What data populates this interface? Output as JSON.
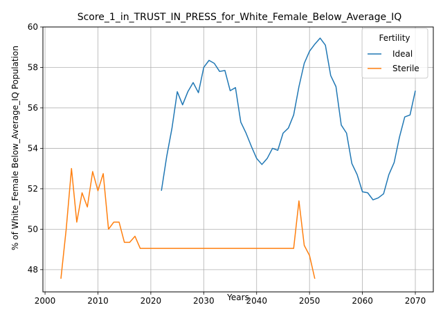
{
  "chart_data": {
    "type": "line",
    "title": "Score_1_in_TRUST_IN_PRESS_for_White_Female_Below_Average_IQ",
    "xlabel": "Years",
    "ylabel": "% of White_Female Below_Average_IQ Population",
    "xlim": [
      1999.6,
      2073.4
    ],
    "ylim": [
      46.9,
      60.0
    ],
    "xticks": [
      2000,
      2010,
      2020,
      2030,
      2040,
      2050,
      2060,
      2070
    ],
    "yticks": [
      48,
      50,
      52,
      54,
      56,
      58,
      60
    ],
    "grid": true,
    "legend": {
      "title": "Fertility",
      "placement": "top-right"
    },
    "series": [
      {
        "name": "Ideal",
        "color": "#1f77b4",
        "x": [
          2022,
          2023,
          2024,
          2025,
          2026,
          2027,
          2028,
          2029,
          2030,
          2031,
          2032,
          2033,
          2034,
          2035,
          2036,
          2037,
          2038,
          2039,
          2040,
          2041,
          2042,
          2043,
          2044,
          2045,
          2046,
          2047,
          2048,
          2049,
          2050,
          2051,
          2052,
          2053,
          2054,
          2055,
          2056,
          2057,
          2058,
          2059,
          2060,
          2061,
          2062,
          2063,
          2064,
          2065,
          2066,
          2067,
          2068,
          2069,
          2070
        ],
        "y": [
          51.9,
          53.6,
          55.0,
          56.8,
          56.15,
          56.8,
          57.25,
          56.75,
          58.0,
          58.35,
          58.2,
          57.8,
          57.85,
          56.85,
          57.0,
          55.3,
          54.75,
          54.1,
          53.5,
          53.2,
          53.5,
          54.0,
          53.9,
          54.75,
          55.0,
          55.65,
          57.05,
          58.2,
          58.8,
          59.15,
          59.45,
          59.1,
          57.6,
          57.05,
          55.15,
          54.75,
          53.25,
          52.7,
          51.85,
          51.8,
          51.45,
          51.55,
          51.75,
          52.7,
          53.3,
          54.55,
          55.55,
          55.65,
          56.85
        ]
      },
      {
        "name": "Sterile",
        "color": "#ff7f0e",
        "x": [
          2003,
          2004,
          2005,
          2006,
          2007,
          2008,
          2009,
          2010,
          2011,
          2012,
          2013,
          2014,
          2015,
          2016,
          2017,
          2018,
          2019,
          2020,
          2021,
          2022,
          2023,
          2024,
          2025,
          2026,
          2027,
          2028,
          2029,
          2030,
          2031,
          2032,
          2033,
          2034,
          2035,
          2036,
          2037,
          2038,
          2039,
          2040,
          2041,
          2042,
          2043,
          2044,
          2045,
          2046,
          2047,
          2048,
          2049,
          2050,
          2051
        ],
        "y": [
          47.55,
          50.0,
          53.0,
          50.35,
          51.8,
          51.1,
          52.85,
          51.9,
          52.75,
          50.0,
          50.35,
          50.35,
          49.35,
          49.35,
          49.65,
          49.05,
          49.05,
          49.05,
          49.05,
          49.05,
          49.05,
          49.05,
          49.05,
          49.05,
          49.05,
          49.05,
          49.05,
          49.05,
          49.05,
          49.05,
          49.05,
          49.05,
          49.05,
          49.05,
          49.05,
          49.05,
          49.05,
          49.05,
          49.05,
          49.05,
          49.05,
          49.05,
          49.05,
          49.05,
          49.05,
          51.4,
          49.2,
          48.7,
          47.55
        ]
      }
    ]
  }
}
